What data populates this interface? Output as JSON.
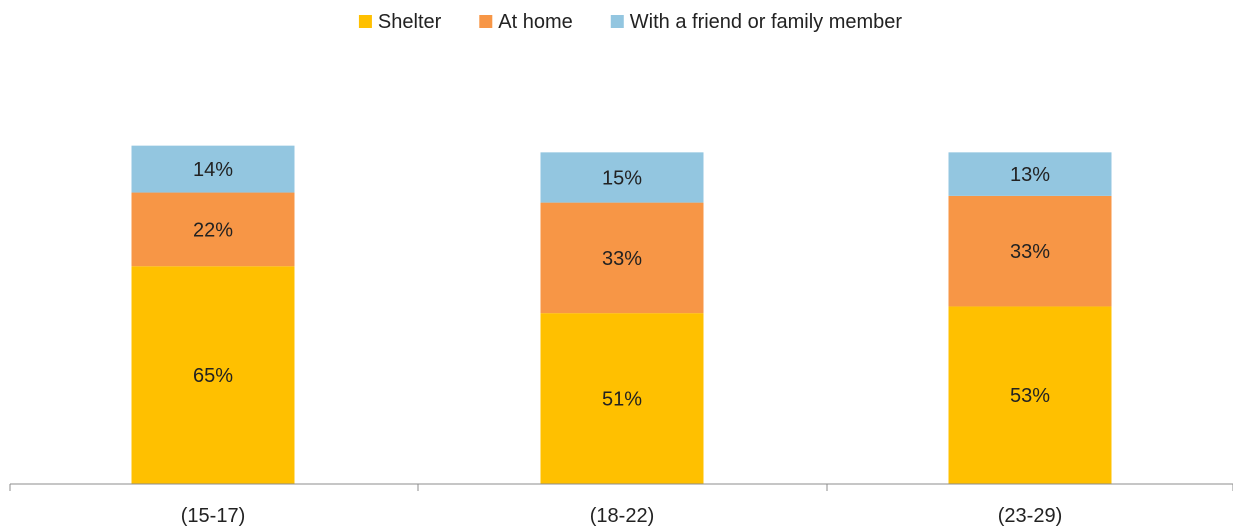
{
  "chart_data": {
    "type": "bar",
    "stacked": true,
    "categories": [
      "(15-17)",
      "(18-22)",
      "(23-29)"
    ],
    "series": [
      {
        "name": "Shelter",
        "values": [
          65,
          51,
          53
        ],
        "labels": [
          "65%",
          "51%",
          "53%"
        ],
        "color": "#FFC000"
      },
      {
        "name": "At home",
        "values": [
          22,
          33,
          33
        ],
        "labels": [
          "22%",
          "33%",
          "33%"
        ],
        "color": "#F79646"
      },
      {
        "name": "With a friend or family member",
        "values": [
          14,
          15,
          13
        ],
        "labels": [
          "14%",
          "15%",
          "13%"
        ],
        "color": "#93C6E0"
      }
    ],
    "ylim": [
      0,
      100
    ],
    "grid": false,
    "legend": "top-center"
  }
}
